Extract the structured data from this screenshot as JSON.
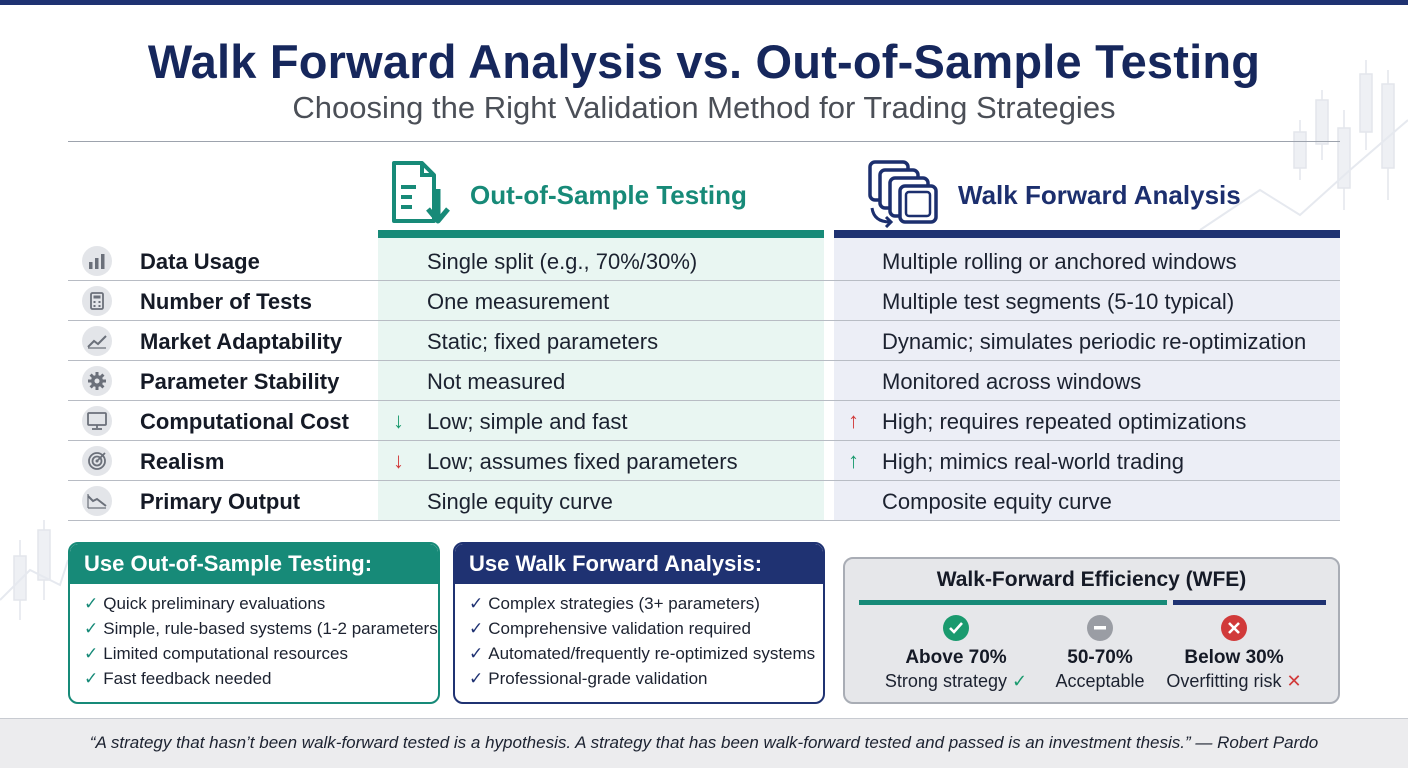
{
  "title": "Walk Forward Analysis vs. Out-of-Sample Testing",
  "subtitle": "Choosing the Right Validation Method for Trading Strategies",
  "columns": {
    "oos": {
      "title": "Out-of-Sample Testing",
      "icon": "document-download-icon",
      "color": "#178a78"
    },
    "wfa": {
      "title": "Walk Forward Analysis",
      "icon": "stacked-windows-icon",
      "color": "#1f3272"
    }
  },
  "rows": [
    {
      "label": "Data Usage",
      "icon": "bar-chart-icon",
      "oos": "Single split (e.g., 70%/30%)",
      "wfa": "Multiple rolling or anchored windows"
    },
    {
      "label": "Number of Tests",
      "icon": "calculator-icon",
      "oos": "One measurement",
      "wfa": "Multiple test segments (5-10 typical)"
    },
    {
      "label": "Market Adaptability",
      "icon": "trend-line-icon",
      "oos": "Static; fixed parameters",
      "wfa": "Dynamic; simulates periodic re-optimization"
    },
    {
      "label": "Parameter Stability",
      "icon": "gear-icon",
      "oos": "Not measured",
      "wfa": "Monitored across windows"
    },
    {
      "label": "Computational Cost",
      "icon": "monitor-icon",
      "oos": "Low; simple and fast",
      "wfa": "High; requires repeated optimizations",
      "oos_arrow": "↓",
      "wfa_arrow": "↑"
    },
    {
      "label": "Realism",
      "icon": "target-icon",
      "oos": "Low; assumes fixed parameters",
      "wfa": "High; mimics real-world trading",
      "oos_arrow": "↓",
      "wfa_arrow": "↑"
    },
    {
      "label": "Primary Output",
      "icon": "equity-curve-icon",
      "oos": "Single equity curve",
      "wfa": "Composite equity curve"
    }
  ],
  "use_oos": {
    "title": "Use Out-of-Sample Testing:",
    "items": [
      "Quick preliminary evaluations",
      "Simple, rule-based systems (1-2 parameters)",
      "Limited computational resources",
      "Fast feedback needed"
    ]
  },
  "use_wfa": {
    "title": "Use Walk Forward Analysis:",
    "items": [
      "Complex strategies (3+ parameters)",
      "Comprehensive validation required",
      "Automated/frequently re-optimized systems",
      "Professional-grade validation"
    ]
  },
  "wfe": {
    "title": "Walk-Forward Efficiency (WFE)",
    "tiers": [
      {
        "value": "Above 70%",
        "desc": "Strong strategy",
        "icon": "check-circle-icon",
        "mark": "✓",
        "color": "#1a9a6e"
      },
      {
        "value": "50-70%",
        "desc": "Acceptable",
        "icon": "minus-circle-icon",
        "mark": "",
        "color": "#9a9da4"
      },
      {
        "value": "Below 30%",
        "desc": "Overfitting risk",
        "icon": "x-circle-icon",
        "mark": "✕",
        "color": "#d13a3a"
      }
    ]
  },
  "quote": "“A strategy that hasn’t been walk-forward tested is a hypothesis. A strategy that has been walk-forward tested and passed is an investment thesis.” — Robert Pardo"
}
